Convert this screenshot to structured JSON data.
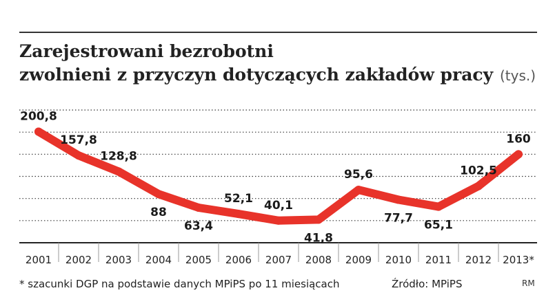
{
  "chart_data": {
    "type": "line",
    "title_line1": "Zarejestrowani bezrobotni",
    "title_line2": "zwolnieni z przyczyn dotyczących zakładów pracy",
    "unit": "(tys.)",
    "x": [
      "2001",
      "2002",
      "2003",
      "2004",
      "2005",
      "2006",
      "2007",
      "2008",
      "2009",
      "2010",
      "2011",
      "2012",
      "2013*"
    ],
    "values": [
      200.8,
      157.8,
      128.8,
      88,
      63.4,
      52.1,
      40.1,
      41.8,
      95.6,
      77.7,
      65.1,
      102.5,
      160
    ],
    "value_labels": [
      "200,8",
      "157,8",
      "128,8",
      "88",
      "63,4",
      "52,1",
      "40,1",
      "41,8",
      "95,6",
      "77,7",
      "65,1",
      "102,5",
      "160"
    ],
    "label_positions": [
      "above",
      "above",
      "above",
      "below",
      "below",
      "above",
      "above",
      "below",
      "above",
      "below",
      "below",
      "above",
      "above"
    ],
    "ylim": [
      0,
      240
    ],
    "grid": "dotted",
    "line_color": "#e8332a",
    "footnote": "* szacunki DGP na podstawie danych MPiPS po 11 miesiącach",
    "source": "Źródło: MPiPS",
    "author": "RM"
  }
}
